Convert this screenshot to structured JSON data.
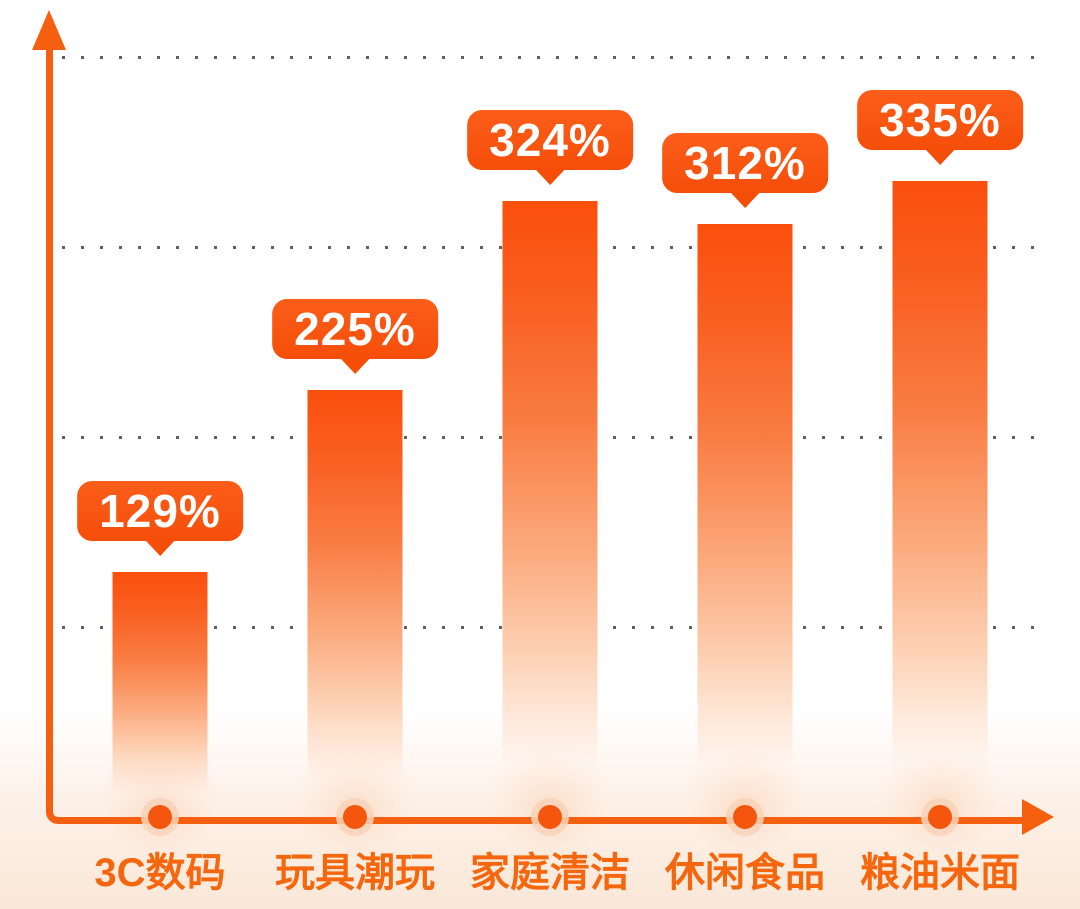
{
  "chart_data": {
    "type": "bar",
    "categories": [
      "3C数码",
      "玩具潮玩",
      "家庭清洁",
      "休闲食品",
      "粮油米面"
    ],
    "values": [
      129,
      225,
      324,
      312,
      335
    ],
    "labels": [
      "129%",
      "225%",
      "324%",
      "312%",
      "335%"
    ],
    "title": "",
    "xlabel": "",
    "ylabel": "",
    "ylim": [
      0,
      430
    ],
    "gridlines": [
      100,
      200,
      300,
      400
    ],
    "gridline_labels_visible": false,
    "grid": true,
    "legend": false,
    "bar_gradient": [
      "#FB4F0C",
      "#F97C42",
      "#FDD5BA",
      "transparent"
    ]
  },
  "colors": {
    "badge": "#F9530F",
    "badge_text": "#FFFFFF",
    "axis": "#F4600F",
    "category_text": "#F5670F",
    "grid_dot": "#4B423C",
    "dot_core": "#F3560C",
    "dot_halo": "#F8D2B8",
    "background_bottom": "#F9E8D8"
  },
  "icons": {
    "y_axis_arrow": "triangle-up",
    "x_axis_arrow": "triangle-right",
    "badge_pointer": "triangle-down",
    "axis_point": "circle"
  }
}
